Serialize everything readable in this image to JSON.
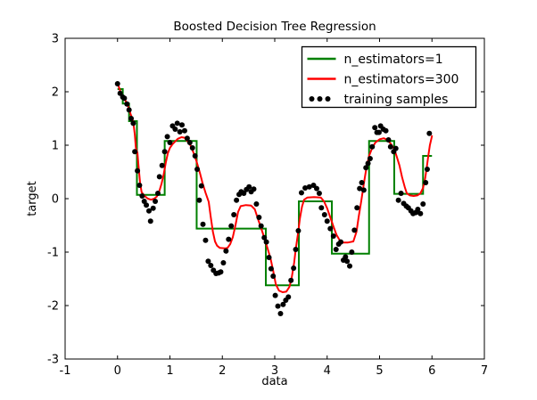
{
  "figure": {
    "title": "Boosted Decision Tree Regression",
    "xlabel": "data",
    "ylabel": "target"
  },
  "legend": {
    "items": [
      {
        "label": "n_estimators=1",
        "color": "#008000",
        "type": "line"
      },
      {
        "label": "n_estimators=300",
        "color": "#ff0000",
        "type": "line"
      },
      {
        "label": "training samples",
        "color": "#000000",
        "type": "scatter"
      }
    ]
  },
  "chart_data": {
    "type": "line",
    "title": "Boosted Decision Tree Regression",
    "xlabel": "data",
    "ylabel": "target",
    "xlim": [
      -1,
      7
    ],
    "ylim": [
      -3,
      3
    ],
    "xticks": [
      -1,
      0,
      1,
      2,
      3,
      4,
      5,
      6,
      7
    ],
    "yticks": [
      -3,
      -2,
      -1,
      0,
      1,
      2,
      3
    ],
    "grid": false,
    "legend_position": "upper right",
    "series": [
      {
        "name": "n_estimators=1",
        "type": "step",
        "color": "#008000",
        "linewidth": 2,
        "segments": [
          [
            0.0,
            0.1,
            2.05
          ],
          [
            0.1,
            0.22,
            1.78
          ],
          [
            0.22,
            0.37,
            1.45
          ],
          [
            0.37,
            0.9,
            0.07
          ],
          [
            0.9,
            1.51,
            1.08
          ],
          [
            1.51,
            2.83,
            -0.56
          ],
          [
            2.83,
            3.46,
            -1.62
          ],
          [
            3.46,
            4.09,
            -0.05
          ],
          [
            4.09,
            4.8,
            -1.03
          ],
          [
            4.8,
            5.28,
            1.08
          ],
          [
            5.28,
            5.83,
            0.09
          ],
          [
            5.83,
            6.0,
            0.8
          ]
        ]
      },
      {
        "name": "n_estimators=300",
        "type": "line",
        "color": "#ff0000",
        "linewidth": 2,
        "points": [
          [
            0.0,
            2.16
          ],
          [
            0.04,
            2.05
          ],
          [
            0.08,
            1.93
          ],
          [
            0.12,
            1.88
          ],
          [
            0.16,
            1.82
          ],
          [
            0.19,
            1.76
          ],
          [
            0.22,
            1.68
          ],
          [
            0.25,
            1.58
          ],
          [
            0.28,
            1.5
          ],
          [
            0.3,
            1.44
          ],
          [
            0.33,
            1.2
          ],
          [
            0.35,
            0.95
          ],
          [
            0.38,
            0.86
          ],
          [
            0.4,
            0.62
          ],
          [
            0.43,
            0.3
          ],
          [
            0.46,
            0.12
          ],
          [
            0.5,
            0.07
          ],
          [
            0.54,
            0.03
          ],
          [
            0.58,
            0.0
          ],
          [
            0.64,
            -0.02
          ],
          [
            0.7,
            0.0
          ],
          [
            0.75,
            0.04
          ],
          [
            0.8,
            0.15
          ],
          [
            0.84,
            0.28
          ],
          [
            0.88,
            0.45
          ],
          [
            0.92,
            0.67
          ],
          [
            0.96,
            0.85
          ],
          [
            1.0,
            0.95
          ],
          [
            1.05,
            1.02
          ],
          [
            1.1,
            1.07
          ],
          [
            1.15,
            1.12
          ],
          [
            1.22,
            1.15
          ],
          [
            1.28,
            1.14
          ],
          [
            1.33,
            1.08
          ],
          [
            1.39,
            1.0
          ],
          [
            1.45,
            0.86
          ],
          [
            1.51,
            0.69
          ],
          [
            1.57,
            0.49
          ],
          [
            1.62,
            0.3
          ],
          [
            1.68,
            0.11
          ],
          [
            1.74,
            -0.06
          ],
          [
            1.78,
            -0.35
          ],
          [
            1.82,
            -0.62
          ],
          [
            1.86,
            -0.8
          ],
          [
            1.9,
            -0.88
          ],
          [
            1.95,
            -0.92
          ],
          [
            2.05,
            -0.93
          ],
          [
            2.1,
            -0.92
          ],
          [
            2.15,
            -0.85
          ],
          [
            2.2,
            -0.72
          ],
          [
            2.25,
            -0.5
          ],
          [
            2.3,
            -0.25
          ],
          [
            2.35,
            -0.14
          ],
          [
            2.45,
            -0.12
          ],
          [
            2.55,
            -0.13
          ],
          [
            2.62,
            -0.2
          ],
          [
            2.68,
            -0.38
          ],
          [
            2.74,
            -0.55
          ],
          [
            2.8,
            -0.73
          ],
          [
            2.86,
            -0.92
          ],
          [
            2.92,
            -1.12
          ],
          [
            2.97,
            -1.35
          ],
          [
            3.02,
            -1.6
          ],
          [
            3.08,
            -1.72
          ],
          [
            3.15,
            -1.75
          ],
          [
            3.22,
            -1.74
          ],
          [
            3.28,
            -1.65
          ],
          [
            3.32,
            -1.5
          ],
          [
            3.37,
            -1.2
          ],
          [
            3.4,
            -0.95
          ],
          [
            3.44,
            -0.68
          ],
          [
            3.48,
            -0.37
          ],
          [
            3.52,
            -0.15
          ],
          [
            3.56,
            -0.02
          ],
          [
            3.62,
            0.02
          ],
          [
            3.75,
            0.03
          ],
          [
            3.88,
            0.02
          ],
          [
            3.94,
            -0.05
          ],
          [
            4.0,
            -0.18
          ],
          [
            4.06,
            -0.35
          ],
          [
            4.12,
            -0.52
          ],
          [
            4.18,
            -0.68
          ],
          [
            4.24,
            -0.78
          ],
          [
            4.3,
            -0.82
          ],
          [
            4.4,
            -0.82
          ],
          [
            4.5,
            -0.8
          ],
          [
            4.56,
            -0.62
          ],
          [
            4.6,
            -0.35
          ],
          [
            4.65,
            -0.05
          ],
          [
            4.7,
            0.28
          ],
          [
            4.75,
            0.58
          ],
          [
            4.8,
            0.8
          ],
          [
            4.86,
            0.95
          ],
          [
            4.92,
            1.05
          ],
          [
            5.0,
            1.11
          ],
          [
            5.08,
            1.13
          ],
          [
            5.15,
            1.1
          ],
          [
            5.22,
            1.02
          ],
          [
            5.28,
            0.93
          ],
          [
            5.33,
            0.78
          ],
          [
            5.38,
            0.62
          ],
          [
            5.43,
            0.4
          ],
          [
            5.48,
            0.22
          ],
          [
            5.52,
            0.1
          ],
          [
            5.58,
            0.06
          ],
          [
            5.65,
            0.05
          ],
          [
            5.72,
            0.06
          ],
          [
            5.78,
            0.1
          ],
          [
            5.83,
            0.2
          ],
          [
            5.87,
            0.38
          ],
          [
            5.9,
            0.58
          ],
          [
            5.93,
            0.8
          ],
          [
            5.96,
            1.0
          ],
          [
            6.0,
            1.17
          ]
        ]
      },
      {
        "name": "training samples",
        "type": "scatter",
        "color": "#000000",
        "markersize": 3,
        "points": [
          [
            0.0,
            2.15
          ],
          [
            0.05,
            1.97
          ],
          [
            0.1,
            1.9
          ],
          [
            0.13,
            1.88
          ],
          [
            0.18,
            1.77
          ],
          [
            0.22,
            1.66
          ],
          [
            0.26,
            1.5
          ],
          [
            0.3,
            1.41
          ],
          [
            0.33,
            0.88
          ],
          [
            0.38,
            0.52
          ],
          [
            0.42,
            0.25
          ],
          [
            0.47,
            0.05
          ],
          [
            0.51,
            -0.05
          ],
          [
            0.55,
            -0.12
          ],
          [
            0.6,
            -0.23
          ],
          [
            0.63,
            -0.42
          ],
          [
            0.68,
            -0.18
          ],
          [
            0.72,
            -0.05
          ],
          [
            0.77,
            0.1
          ],
          [
            0.8,
            0.41
          ],
          [
            0.85,
            0.62
          ],
          [
            0.9,
            0.88
          ],
          [
            0.95,
            1.16
          ],
          [
            1.0,
            1.05
          ],
          [
            1.05,
            1.36
          ],
          [
            1.1,
            1.3
          ],
          [
            1.14,
            1.41
          ],
          [
            1.19,
            1.25
          ],
          [
            1.23,
            1.38
          ],
          [
            1.28,
            1.27
          ],
          [
            1.33,
            1.13
          ],
          [
            1.38,
            1.05
          ],
          [
            1.43,
            0.95
          ],
          [
            1.48,
            0.8
          ],
          [
            1.52,
            0.55
          ],
          [
            1.56,
            -0.03
          ],
          [
            1.6,
            0.24
          ],
          [
            1.63,
            -0.48
          ],
          [
            1.68,
            -0.78
          ],
          [
            1.73,
            -1.17
          ],
          [
            1.78,
            -1.25
          ],
          [
            1.83,
            -1.34
          ],
          [
            1.88,
            -1.4
          ],
          [
            1.93,
            -1.39
          ],
          [
            1.97,
            -1.37
          ],
          [
            2.02,
            -1.2
          ],
          [
            2.07,
            -0.98
          ],
          [
            2.12,
            -0.76
          ],
          [
            2.17,
            -0.51
          ],
          [
            2.22,
            -0.3
          ],
          [
            2.27,
            -0.03
          ],
          [
            2.32,
            0.08
          ],
          [
            2.36,
            0.13
          ],
          [
            2.41,
            0.1
          ],
          [
            2.46,
            0.17
          ],
          [
            2.51,
            0.22
          ],
          [
            2.55,
            0.13
          ],
          [
            2.6,
            0.18
          ],
          [
            2.65,
            -0.1
          ],
          [
            2.7,
            -0.35
          ],
          [
            2.74,
            -0.51
          ],
          [
            2.8,
            -0.73
          ],
          [
            2.84,
            -0.81
          ],
          [
            2.89,
            -1.1
          ],
          [
            2.93,
            -1.31
          ],
          [
            2.97,
            -1.45
          ],
          [
            3.01,
            -1.81
          ],
          [
            3.06,
            -2.01
          ],
          [
            3.11,
            -2.15
          ],
          [
            3.16,
            -1.98
          ],
          [
            3.21,
            -1.9
          ],
          [
            3.26,
            -1.84
          ],
          [
            3.31,
            -1.53
          ],
          [
            3.36,
            -1.3
          ],
          [
            3.4,
            -0.95
          ],
          [
            3.45,
            -0.6
          ],
          [
            3.51,
            0.11
          ],
          [
            3.58,
            0.2
          ],
          [
            3.66,
            0.22
          ],
          [
            3.74,
            0.25
          ],
          [
            3.8,
            0.19
          ],
          [
            3.85,
            0.1
          ],
          [
            3.89,
            -0.17
          ],
          [
            3.95,
            -0.3
          ],
          [
            4.0,
            -0.42
          ],
          [
            4.06,
            -0.56
          ],
          [
            4.12,
            -0.7
          ],
          [
            4.17,
            -0.95
          ],
          [
            4.22,
            -0.85
          ],
          [
            4.26,
            -0.81
          ],
          [
            4.31,
            -1.15
          ],
          [
            4.35,
            -1.09
          ],
          [
            4.38,
            -1.17
          ],
          [
            4.43,
            -1.26
          ],
          [
            4.47,
            -1.0
          ],
          [
            4.52,
            -0.59
          ],
          [
            4.57,
            -0.17
          ],
          [
            4.62,
            0.19
          ],
          [
            4.66,
            0.3
          ],
          [
            4.7,
            0.16
          ],
          [
            4.74,
            0.58
          ],
          [
            4.78,
            0.66
          ],
          [
            4.82,
            0.75
          ],
          [
            4.86,
            0.97
          ],
          [
            4.91,
            1.33
          ],
          [
            4.95,
            1.24
          ],
          [
            4.99,
            1.24
          ],
          [
            5.02,
            1.36
          ],
          [
            5.07,
            1.3
          ],
          [
            5.12,
            1.27
          ],
          [
            5.17,
            1.1
          ],
          [
            5.21,
            0.97
          ],
          [
            5.27,
            0.88
          ],
          [
            5.31,
            0.94
          ],
          [
            5.36,
            -0.03
          ],
          [
            5.41,
            0.1
          ],
          [
            5.46,
            -0.09
          ],
          [
            5.51,
            -0.14
          ],
          [
            5.55,
            -0.17
          ],
          [
            5.6,
            -0.23
          ],
          [
            5.64,
            -0.28
          ],
          [
            5.69,
            -0.26
          ],
          [
            5.73,
            -0.2
          ],
          [
            5.78,
            -0.28
          ],
          [
            5.83,
            -0.1
          ],
          [
            5.88,
            0.3
          ],
          [
            5.91,
            0.55
          ],
          [
            5.95,
            1.22
          ]
        ]
      }
    ]
  }
}
